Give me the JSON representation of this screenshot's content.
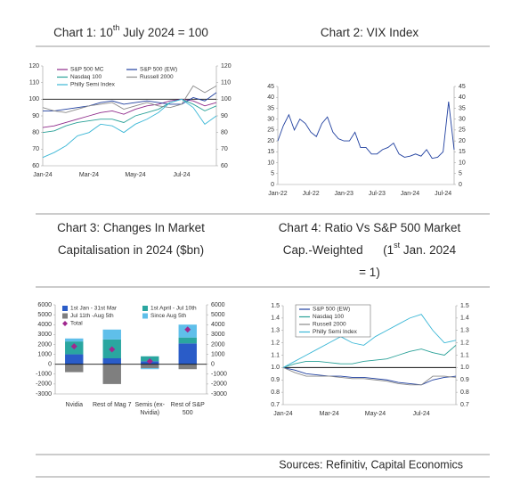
{
  "chart_data": [
    {
      "type": "line",
      "title": [
        [
          {
            "text": "Chart 1: 10"
          },
          {
            "text": "th",
            "sup": true
          },
          {
            "text": " July 2024 = 100"
          }
        ]
      ],
      "categories": [
        "Jan-24",
        null,
        null,
        null,
        "Mar-24",
        null,
        null,
        null,
        "May-24",
        null,
        null,
        null,
        "Jul-24",
        null,
        null,
        null
      ],
      "series": [
        {
          "name": "S&P 500 MC",
          "color": "#8e2a8a",
          "values": [
            83,
            84,
            86,
            88,
            90,
            92,
            93,
            91,
            94,
            96,
            97,
            99,
            100,
            99,
            96,
            98
          ]
        },
        {
          "name": "S&P 500 (EW)",
          "color": "#1f3f9f",
          "values": [
            93,
            93,
            94,
            95,
            96,
            98,
            99,
            97,
            98,
            99,
            98,
            97,
            97,
            101,
            99,
            104
          ]
        },
        {
          "name": "Nasdaq 100",
          "color": "#2aa198",
          "values": [
            80,
            81,
            84,
            86,
            87,
            88,
            88,
            86,
            90,
            92,
            94,
            98,
            100,
            97,
            93,
            96
          ]
        },
        {
          "name": "Russell 2000",
          "color": "#8a8a8a",
          "values": [
            95,
            93,
            92,
            94,
            96,
            97,
            98,
            94,
            96,
            98,
            96,
            95,
            97,
            108,
            104,
            108
          ]
        },
        {
          "name": "Philly Semi Index",
          "color": "#3bb7d6",
          "values": [
            65,
            68,
            72,
            78,
            80,
            85,
            84,
            80,
            85,
            88,
            92,
            98,
            100,
            95,
            85,
            90
          ]
        }
      ],
      "reference_line": 100,
      "ylim": [
        60,
        120
      ],
      "yticks": [
        60,
        70,
        80,
        90,
        100,
        110,
        120
      ],
      "right_axis": true,
      "legend": "top-left",
      "legend_columns": 2,
      "legend_frame": false
    },
    {
      "type": "line",
      "title": [
        [
          {
            "text": "Chart 2: VIX Index"
          }
        ]
      ],
      "categories": [
        "Jan-22",
        null,
        null,
        null,
        null,
        null,
        "Jul-22",
        null,
        null,
        null,
        null,
        null,
        "Jan-23",
        null,
        null,
        null,
        null,
        null,
        "Jul-23",
        null,
        null,
        null,
        null,
        null,
        "Jan-24",
        null,
        null,
        null,
        null,
        null,
        "Jul-24",
        null,
        null
      ],
      "series": [
        {
          "color": "#1f3f9f",
          "values": [
            20,
            27,
            32,
            25,
            30,
            28,
            24,
            22,
            28,
            31,
            24,
            21,
            20,
            20,
            24,
            17,
            17,
            14,
            14,
            16,
            17,
            19,
            14,
            12.5,
            13,
            14,
            13,
            16,
            12,
            12.5,
            15,
            38,
            16
          ]
        }
      ],
      "ylim": [
        0,
        45
      ],
      "yticks": [
        0,
        5,
        10,
        15,
        20,
        25,
        30,
        35,
        40,
        45
      ],
      "right_axis": true
    },
    {
      "type": "bar",
      "title": [
        [
          {
            "text": "Chart 3: Changes In Market"
          }
        ],
        [
          {
            "text": "Capitalisation in 2024 ($bn)"
          }
        ]
      ],
      "categories": [
        [
          "Nvidia"
        ],
        [
          "Rest of Mag 7"
        ],
        [
          "Semis (ex-",
          "Nvidia)"
        ],
        [
          "Rest of S&P",
          "500"
        ]
      ],
      "series": [
        {
          "name": "1st Jan - 31st Mar",
          "color": "#2a5cc8",
          "values": [
            1000,
            600,
            300,
            2100
          ]
        },
        {
          "name": "1st April - Jul 10th",
          "color": "#2aa6a0",
          "values": [
            1300,
            1900,
            500,
            600
          ]
        },
        {
          "name": "Jul 11th -Aug 5th",
          "color": "#7f7f7f",
          "values": [
            -800,
            -2000,
            -400,
            -500
          ]
        },
        {
          "name": "Since Aug 5th",
          "color": "#5fbfea",
          "values": [
            300,
            1000,
            -100,
            1300
          ]
        }
      ],
      "total": {
        "name": "Total",
        "color": "#a0288f",
        "values": [
          1800,
          1500,
          300,
          3500
        ]
      },
      "ylim": [
        -3000,
        6000
      ],
      "yticks": [
        -3000,
        -2000,
        -1000,
        0,
        1000,
        2000,
        3000,
        4000,
        5000,
        6000
      ],
      "right_axis": true,
      "legend": "top-left",
      "legend_columns": 2
    },
    {
      "type": "line",
      "title": [
        [
          {
            "text": "Chart 4: Ratio Vs S&P 500 Market"
          }
        ],
        [
          {
            "text": "Cap.-Weighted      (1"
          },
          {
            "text": "st",
            "sup": true
          },
          {
            "text": " Jan. 2024"
          }
        ],
        [
          {
            "text": "= 1)"
          }
        ]
      ],
      "categories": [
        "Jan-24",
        null,
        null,
        null,
        "Mar-24",
        null,
        null,
        null,
        "May-24",
        null,
        null,
        null,
        "Jul-24",
        null,
        null,
        null
      ],
      "series": [
        {
          "name": "S&P 500 (EW)",
          "color": "#1f3f9f",
          "values": [
            1.0,
            0.98,
            0.95,
            0.94,
            0.93,
            0.93,
            0.92,
            0.92,
            0.91,
            0.9,
            0.88,
            0.87,
            0.86,
            0.9,
            0.92,
            0.93
          ]
        },
        {
          "name": "Nasdaq 100",
          "color": "#2aa198",
          "values": [
            1.0,
            1.03,
            1.05,
            1.05,
            1.04,
            1.03,
            1.03,
            1.05,
            1.06,
            1.07,
            1.1,
            1.13,
            1.15,
            1.12,
            1.1,
            1.18
          ]
        },
        {
          "name": "Russell 2000",
          "color": "#8a8a8a",
          "values": [
            1.0,
            0.96,
            0.93,
            0.93,
            0.93,
            0.92,
            0.91,
            0.91,
            0.9,
            0.89,
            0.87,
            0.86,
            0.86,
            0.93,
            0.93,
            0.92
          ]
        },
        {
          "name": "Philly Semi Index",
          "color": "#3bb7d6",
          "values": [
            1.0,
            1.05,
            1.1,
            1.15,
            1.2,
            1.25,
            1.2,
            1.18,
            1.25,
            1.3,
            1.35,
            1.4,
            1.43,
            1.3,
            1.2,
            1.22
          ]
        }
      ],
      "reference_line": 1,
      "ylim": [
        0.7,
        1.5
      ],
      "yticks": [
        0.7,
        0.8,
        0.9,
        {
          "value": 1,
          "label": "1.0"
        },
        1.1,
        1.2,
        1.3,
        1.4,
        1.5
      ],
      "right_axis": true,
      "legend": "top-left",
      "legend_columns": 1,
      "legend_frame": true
    }
  ],
  "source": "Sources: Refinitiv, Capital Economics"
}
